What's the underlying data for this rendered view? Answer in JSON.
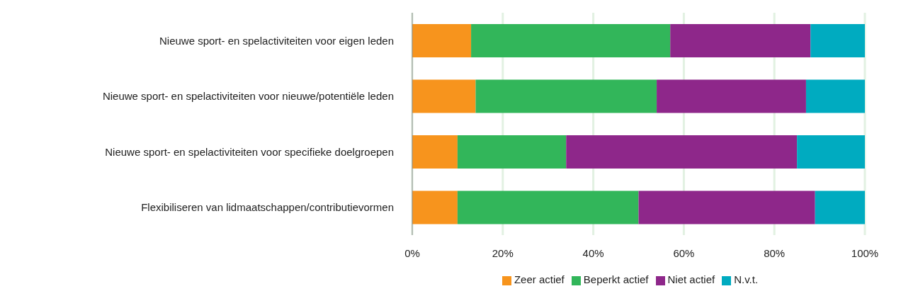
{
  "chart_data": {
    "type": "bar",
    "orientation": "horizontal",
    "stacked": true,
    "categories": [
      "Nieuwe sport- en spelactiviteiten voor eigen leden",
      "Nieuwe sport- en spelactiviteiten voor nieuwe/potentiële leden",
      "Nieuwe sport- en spelactiviteiten voor specifieke doelgroepen",
      "Flexibiliseren van lidmaatschappen/contributievormen"
    ],
    "series": [
      {
        "name": "Zeer actief",
        "color": "#f7941d",
        "values": [
          13,
          14,
          10,
          10
        ]
      },
      {
        "name": "Beperkt actief",
        "color": "#32b65a",
        "values": [
          44,
          40,
          24,
          40
        ]
      },
      {
        "name": "Niet actief",
        "color": "#8e278a",
        "values": [
          31,
          33,
          51,
          39
        ]
      },
      {
        "name": "N.v.t.",
        "color": "#00abc0",
        "values": [
          12,
          13,
          15,
          11
        ]
      }
    ],
    "xlim": [
      0,
      100
    ],
    "xticks": [
      {
        "value": 0,
        "label": "0%"
      },
      {
        "value": 20,
        "label": "20%"
      },
      {
        "value": 40,
        "label": "40%"
      },
      {
        "value": 60,
        "label": "60%"
      },
      {
        "value": 80,
        "label": "80%"
      },
      {
        "value": 100,
        "label": "100%"
      }
    ],
    "grid": "x",
    "legend": "bottom"
  }
}
